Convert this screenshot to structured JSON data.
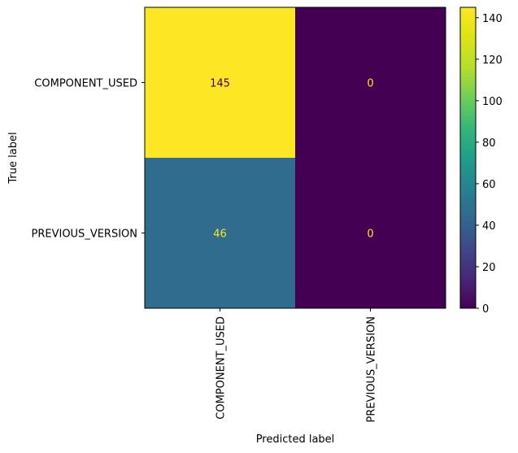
{
  "chart_data": {
    "type": "heatmap",
    "title": "",
    "xlabel": "Predicted label",
    "ylabel": "True label",
    "x_categories": [
      "COMPONENT_USED",
      "PREVIOUS_VERSION"
    ],
    "y_categories": [
      "COMPONENT_USED",
      "PREVIOUS_VERSION"
    ],
    "values": [
      [
        145,
        0
      ],
      [
        46,
        0
      ]
    ],
    "colormap": "viridis",
    "colorbar": {
      "range": [
        0,
        145
      ],
      "ticks": [
        0,
        20,
        40,
        60,
        80,
        100,
        120,
        140
      ],
      "tick_labels": [
        "0",
        "20",
        "40",
        "60",
        "80",
        "100",
        "120",
        "140"
      ]
    },
    "text_colors": {
      "on_dark": "#fde725",
      "on_light": "#440154"
    },
    "grid": false
  }
}
